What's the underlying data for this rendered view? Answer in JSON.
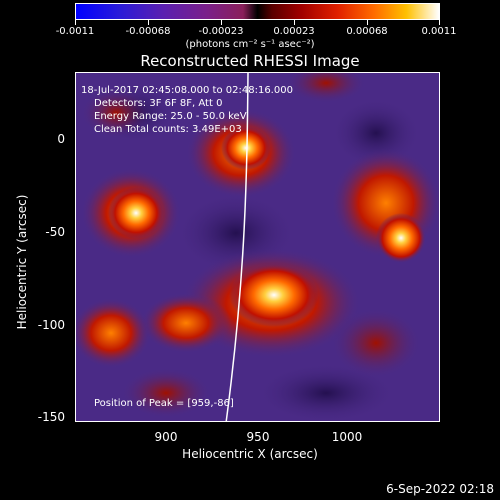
{
  "colorbar": {
    "tick_labels": [
      "-0.0011",
      "-0.00068",
      "-0.00023",
      "0.00023",
      "0.00068",
      "0.0011"
    ],
    "units": "(photons cm⁻² s⁻¹ asec⁻²)"
  },
  "plot": {
    "title": "Reconstructed RHESSI Image",
    "annotations": {
      "line1": "18-Jul-2017 02:45:08.000 to 02:48:16.000",
      "line2": "Detectors: 3F 6F 8F, Att 0",
      "line3": "Energy Range: 25.0 - 50.0 keV",
      "line4": "Clean     Total counts: 3.49E+03"
    },
    "peak_label": "Position of Peak = [959,-86]",
    "x_axis": {
      "label": "Heliocentric X (arcsec)",
      "ticks": [
        "900",
        "950",
        "1000"
      ]
    },
    "y_axis": {
      "label": "Heliocentric Y (arcsec)",
      "ticks": [
        "0",
        "-50",
        "-100",
        "-150"
      ]
    }
  },
  "footer": {
    "timestamp": "6-Sep-2022 02:18"
  },
  "colors": {
    "background": "#000000",
    "text": "#ffffff",
    "image_base": "#4a2a86"
  }
}
